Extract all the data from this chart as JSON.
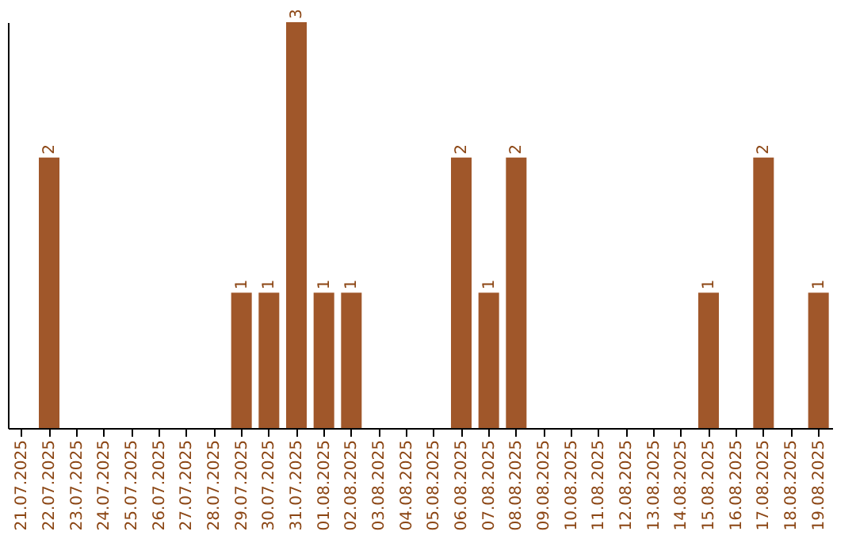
{
  "chart_data": {
    "type": "bar",
    "categories": [
      "21.07.2025",
      "22.07.2025",
      "23.07.2025",
      "24.07.2025",
      "25.07.2025",
      "26.07.2025",
      "27.07.2025",
      "28.07.2025",
      "29.07.2025",
      "30.07.2025",
      "31.07.2025",
      "01.08.2025",
      "02.08.2025",
      "03.08.2025",
      "04.08.2025",
      "05.08.2025",
      "06.08.2025",
      "07.08.2025",
      "08.08.2025",
      "09.08.2025",
      "10.08.2025",
      "11.08.2025",
      "12.08.2025",
      "13.08.2025",
      "14.08.2025",
      "15.08.2025",
      "16.08.2025",
      "17.08.2025",
      "18.08.2025",
      "19.08.2025"
    ],
    "values": [
      0,
      2,
      0,
      0,
      0,
      0,
      0,
      0,
      1,
      1,
      3,
      1,
      1,
      0,
      0,
      0,
      2,
      1,
      2,
      0,
      0,
      0,
      0,
      0,
      0,
      1,
      0,
      2,
      0,
      1
    ],
    "value_labels": [
      null,
      "2",
      null,
      null,
      null,
      null,
      null,
      null,
      "1",
      "1",
      "3",
      "1",
      "1",
      null,
      null,
      null,
      "2",
      "1",
      "2",
      null,
      null,
      null,
      null,
      null,
      null,
      "1",
      null,
      "2",
      null,
      "1"
    ],
    "color": "#a0572a",
    "tick_labels": "x",
    "grid": false
  }
}
